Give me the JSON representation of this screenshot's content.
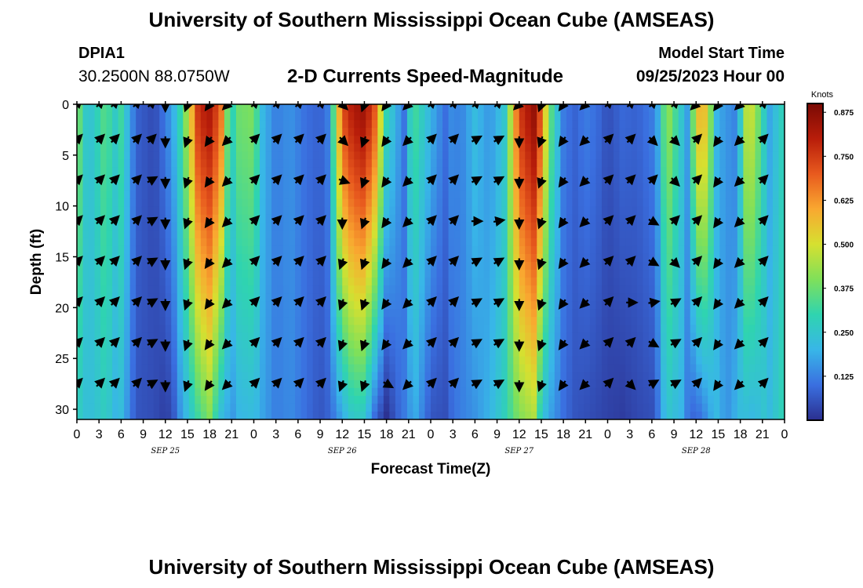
{
  "header": {
    "title": "University of Southern Mississippi Ocean Cube (AMSEAS)",
    "station": "DPIA1",
    "coords": "30.2500N  88.0750W",
    "plot_title": "2-D Currents Speed-Magnitude",
    "model_start_label": "Model Start Time",
    "model_start_value": "09/25/2023 Hour 00"
  },
  "footer": {
    "title": "University of Southern Mississippi Ocean Cube (AMSEAS)"
  },
  "chart_data": {
    "type": "heatmap",
    "title": "2-D Currents Speed-Magnitude",
    "xlabel": "Forecast Time(Z)",
    "ylabel": "Depth (ft)",
    "x_range_hours": [
      0,
      96
    ],
    "ylim": [
      0,
      31
    ],
    "y_inverted": true,
    "yticks": [
      0,
      5,
      10,
      15,
      20,
      25,
      30
    ],
    "xtick_labels": [
      "0",
      "3",
      "6",
      "9",
      "12",
      "15",
      "18",
      "21",
      "0",
      "3",
      "6",
      "9",
      "12",
      "15",
      "18",
      "21",
      "0",
      "3",
      "6",
      "9",
      "12",
      "15",
      "18",
      "21",
      "0",
      "3",
      "6",
      "9",
      "12",
      "15",
      "18",
      "21",
      "0"
    ],
    "date_labels": [
      {
        "hour": 12,
        "label": "SEP 25"
      },
      {
        "hour": 36,
        "label": "SEP 26"
      },
      {
        "hour": 60,
        "label": "SEP 27"
      },
      {
        "hour": 84,
        "label": "SEP 28"
      }
    ],
    "colorbar": {
      "unit": "Knots",
      "ticks": [
        0.125,
        0.25,
        0.375,
        0.5,
        0.625,
        0.75,
        0.875
      ],
      "tick_labels": [
        "0.125",
        "0.250",
        "0.375",
        "0.500",
        "0.625",
        "0.750",
        "0.875"
      ],
      "range": [
        0.0,
        0.9
      ],
      "colormap": [
        "#2b2f8f",
        "#3a6fe0",
        "#38b6e8",
        "#2fd4b0",
        "#7fe05a",
        "#d6e030",
        "#f9a830",
        "#e85a1e",
        "#b81d0a",
        "#7a0a04"
      ]
    },
    "speed_profile_hours": [
      0,
      1.5,
      3,
      4,
      5,
      6,
      8,
      10,
      11,
      12,
      13,
      14,
      15,
      16.5,
      18,
      19.5,
      20.5,
      21,
      22,
      24,
      25,
      27,
      29,
      31,
      33,
      34,
      35,
      36,
      37.5,
      39,
      40.5,
      42,
      43.5,
      44.5,
      45,
      46,
      48,
      50,
      51,
      52,
      54,
      56,
      58,
      60,
      62,
      63,
      64,
      66,
      67.5,
      69,
      70.5,
      72,
      74,
      76,
      78,
      79,
      80,
      82,
      83,
      84,
      85,
      86,
      87,
      88,
      89,
      90,
      91,
      92,
      93,
      94,
      96
    ],
    "speed_surface_knots": [
      0.42,
      0.22,
      0.3,
      0.37,
      0.25,
      0.32,
      0.08,
      0.05,
      0.06,
      0.12,
      0.18,
      0.3,
      0.45,
      0.78,
      0.82,
      0.7,
      0.35,
      0.28,
      0.38,
      0.4,
      0.22,
      0.12,
      0.15,
      0.1,
      0.08,
      0.12,
      0.4,
      0.72,
      0.82,
      0.85,
      0.7,
      0.3,
      0.18,
      0.1,
      0.26,
      0.32,
      0.2,
      0.1,
      0.15,
      0.12,
      0.22,
      0.15,
      0.25,
      0.75,
      0.86,
      0.7,
      0.4,
      0.12,
      0.08,
      0.12,
      0.1,
      0.05,
      0.09,
      0.08,
      0.12,
      0.2,
      0.45,
      0.25,
      0.15,
      0.55,
      0.6,
      0.4,
      0.15,
      0.18,
      0.1,
      0.25,
      0.52,
      0.45,
      0.3,
      0.18,
      0.3
    ],
    "speed_bottom_knots": [
      0.28,
      0.22,
      0.25,
      0.28,
      0.2,
      0.22,
      0.06,
      0.05,
      0.04,
      0.02,
      0.05,
      0.15,
      0.22,
      0.32,
      0.4,
      0.22,
      0.18,
      0.15,
      0.2,
      0.22,
      0.18,
      0.12,
      0.14,
      0.1,
      0.06,
      0.08,
      0.12,
      0.18,
      0.26,
      0.25,
      0.08,
      0.0,
      0.08,
      0.12,
      0.15,
      0.18,
      0.06,
      0.05,
      0.1,
      0.12,
      0.15,
      0.2,
      0.28,
      0.4,
      0.45,
      0.25,
      0.18,
      0.1,
      0.06,
      0.05,
      0.04,
      0.03,
      0.02,
      0.04,
      0.05,
      0.12,
      0.25,
      0.2,
      0.1,
      0.08,
      0.12,
      0.18,
      0.22,
      0.14,
      0.18,
      0.22,
      0.22,
      0.2,
      0.25,
      0.22,
      0.3
    ],
    "arrows": {
      "hours": [
        0,
        3,
        5,
        8,
        10,
        12,
        15,
        18,
        20.5,
        24,
        27,
        30,
        33,
        36,
        39,
        42,
        45,
        48,
        51,
        54,
        57,
        60,
        63,
        66,
        69,
        72,
        75,
        78,
        81,
        84,
        87,
        90,
        93,
        96
      ],
      "depths_ft": [
        0,
        3.5,
        7.5,
        11.5,
        15.5,
        19.5,
        23.5,
        27.5
      ],
      "directions_deg": [
        [
          45,
          45,
          45,
          45,
          45,
          180,
          200,
          215,
          225,
          45,
          45,
          45,
          45,
          135,
          200,
          215,
          225,
          45,
          45,
          45,
          45,
          225,
          200,
          215,
          225,
          45,
          45,
          45,
          45,
          225,
          215,
          225,
          45
        ],
        [
          45,
          45,
          45,
          45,
          45,
          180,
          200,
          215,
          225,
          45,
          45,
          45,
          45,
          135,
          200,
          215,
          225,
          45,
          45,
          60,
          60,
          180,
          200,
          215,
          225,
          45,
          45,
          135,
          135,
          45,
          215,
          225,
          45
        ],
        [
          45,
          45,
          45,
          45,
          60,
          180,
          200,
          215,
          225,
          45,
          45,
          45,
          45,
          110,
          200,
          215,
          225,
          45,
          45,
          60,
          60,
          180,
          200,
          215,
          225,
          45,
          45,
          45,
          135,
          45,
          215,
          225,
          45
        ],
        [
          45,
          45,
          45,
          45,
          60,
          180,
          200,
          215,
          225,
          45,
          45,
          45,
          45,
          180,
          200,
          215,
          225,
          45,
          45,
          90,
          80,
          180,
          200,
          215,
          225,
          45,
          45,
          120,
          45,
          45,
          215,
          225,
          45
        ],
        [
          45,
          45,
          45,
          45,
          60,
          180,
          200,
          215,
          225,
          45,
          45,
          45,
          45,
          200,
          200,
          215,
          225,
          45,
          45,
          60,
          60,
          180,
          200,
          215,
          225,
          45,
          45,
          120,
          135,
          45,
          215,
          225,
          45
        ],
        [
          45,
          45,
          45,
          45,
          60,
          180,
          200,
          215,
          225,
          45,
          45,
          45,
          45,
          200,
          200,
          215,
          225,
          45,
          45,
          60,
          60,
          180,
          200,
          215,
          225,
          45,
          90,
          80,
          60,
          45,
          215,
          225,
          45
        ],
        [
          45,
          45,
          45,
          45,
          60,
          180,
          200,
          215,
          225,
          45,
          45,
          45,
          45,
          200,
          200,
          215,
          225,
          45,
          45,
          60,
          60,
          180,
          200,
          215,
          225,
          45,
          45,
          120,
          60,
          45,
          215,
          225,
          45
        ],
        [
          45,
          45,
          45,
          45,
          60,
          180,
          200,
          215,
          225,
          45,
          45,
          45,
          45,
          200,
          200,
          120,
          225,
          45,
          45,
          60,
          60,
          180,
          200,
          215,
          225,
          45,
          135,
          60,
          60,
          45,
          215,
          225,
          45
        ]
      ]
    }
  }
}
